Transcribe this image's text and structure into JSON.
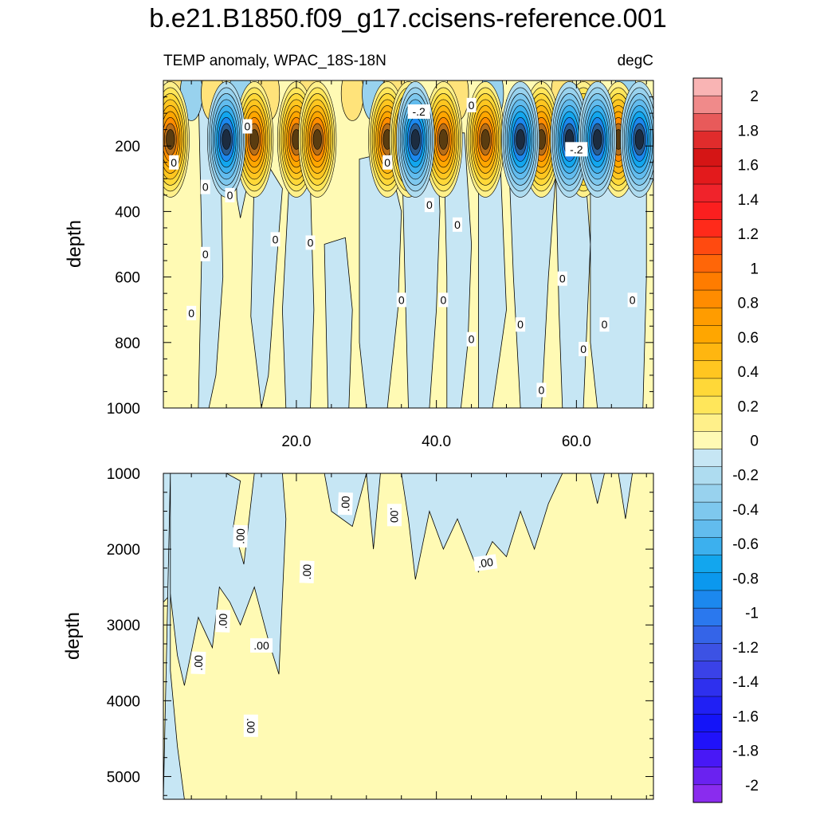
{
  "title": "b.e21.B1850.f09_g17.ccisens-reference.001",
  "subtitle_left": "TEMP anomaly, WPAC_18S-18N",
  "subtitle_right": "degC",
  "chart_data": [
    {
      "type": "contour",
      "panel": "upper",
      "ylabel": "depth",
      "ylim": [
        1000,
        0
      ],
      "xlim": [
        1,
        71
      ],
      "xticks": [
        "20.0",
        "40.0",
        "60.0"
      ],
      "xtick_values": [
        20,
        40,
        60
      ],
      "yticks": [
        "200",
        "400",
        "600",
        "800",
        "1000"
      ],
      "ytick_values": [
        200,
        400,
        600,
        800,
        1000
      ],
      "contour_labels": [
        "0",
        "0",
        "0",
        "0",
        "0",
        "0",
        "0",
        "0",
        "0",
        "0",
        "0",
        "0",
        "0",
        "0",
        "0",
        "0",
        "0",
        "0",
        "0",
        "0",
        "0",
        "-.2",
        "-.2"
      ],
      "warm_cores_x": [
        2,
        14,
        20,
        23,
        33,
        36,
        41,
        47,
        55,
        61,
        66
      ],
      "cold_cores_x": [
        10,
        37,
        52,
        59,
        63,
        69
      ],
      "core_depth": 180
    },
    {
      "type": "contour",
      "panel": "lower",
      "ylabel": "depth",
      "ylim": [
        5300,
        1000
      ],
      "yticks": [
        "1000",
        "2000",
        "3000",
        "4000",
        "5000"
      ],
      "ytick_values": [
        1000,
        2000,
        3000,
        4000,
        5000
      ],
      "contour_labels": [
        ".00",
        ".00",
        ".00",
        ".00",
        ".00",
        ".00",
        ".00",
        ".00",
        ".00"
      ]
    }
  ],
  "colorbar": {
    "labels": [
      "2",
      "1.8",
      "1.6",
      "1.4",
      "1.2",
      "1",
      "0.8",
      "0.6",
      "0.4",
      "0.2",
      "0",
      "-0.2",
      "-0.4",
      "-0.6",
      "-0.8",
      "-1",
      "-1.2",
      "-1.4",
      "-1.6",
      "-1.8",
      "-2"
    ],
    "colors": [
      "#f9b4b4",
      "#f08a8a",
      "#e85a5a",
      "#e02c2c",
      "#d51515",
      "#e31a1c",
      "#f0232b",
      "#fb1f1f",
      "#ff2a1a",
      "#ff4a10",
      "#ff6608",
      "#ff7c00",
      "#ff8c00",
      "#ff9c00",
      "#ffa600",
      "#ffb610",
      "#ffc620",
      "#ffd838",
      "#ffe65a",
      "#fff08a",
      "#fffab4",
      "#c6e6f4",
      "#aedcf0",
      "#98d2ee",
      "#7ec8ee",
      "#62bcee",
      "#3cb0ee",
      "#12a6ee",
      "#0b98ee",
      "#1c88ee",
      "#2a78ee",
      "#3464e8",
      "#3c52e4",
      "#3a42e8",
      "#2e30ee",
      "#2020f4",
      "#1414f8",
      "#2012fa",
      "#4818f6",
      "#6a22f0",
      "#8a2cee"
    ]
  }
}
